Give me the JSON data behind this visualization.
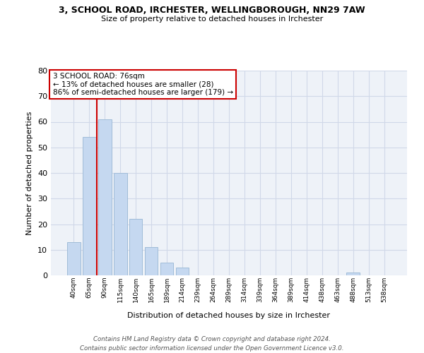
{
  "title1": "3, SCHOOL ROAD, IRCHESTER, WELLINGBOROUGH, NN29 7AW",
  "title2": "Size of property relative to detached houses in Irchester",
  "xlabel": "Distribution of detached houses by size in Irchester",
  "ylabel": "Number of detached properties",
  "bar_labels": [
    "40sqm",
    "65sqm",
    "90sqm",
    "115sqm",
    "140sqm",
    "165sqm",
    "189sqm",
    "214sqm",
    "239sqm",
    "264sqm",
    "289sqm",
    "314sqm",
    "339sqm",
    "364sqm",
    "389sqm",
    "414sqm",
    "438sqm",
    "463sqm",
    "488sqm",
    "513sqm",
    "538sqm"
  ],
  "bar_values": [
    13,
    54,
    61,
    40,
    22,
    11,
    5,
    3,
    0,
    0,
    0,
    0,
    0,
    0,
    0,
    0,
    0,
    0,
    1,
    0,
    0
  ],
  "bar_color": "#c5d8f0",
  "bar_edgecolor": "#a0bcd8",
  "property_line_x": 1.5,
  "property_line_color": "#cc0000",
  "annotation_text": "3 SCHOOL ROAD: 76sqm\n← 13% of detached houses are smaller (28)\n86% of semi-detached houses are larger (179) →",
  "annotation_box_color": "#cc0000",
  "ylim": [
    0,
    80
  ],
  "yticks": [
    0,
    10,
    20,
    30,
    40,
    50,
    60,
    70,
    80
  ],
  "grid_color": "#d0d8e8",
  "bg_color": "#eef2f8",
  "footer": "Contains HM Land Registry data © Crown copyright and database right 2024.\nContains public sector information licensed under the Open Government Licence v3.0."
}
